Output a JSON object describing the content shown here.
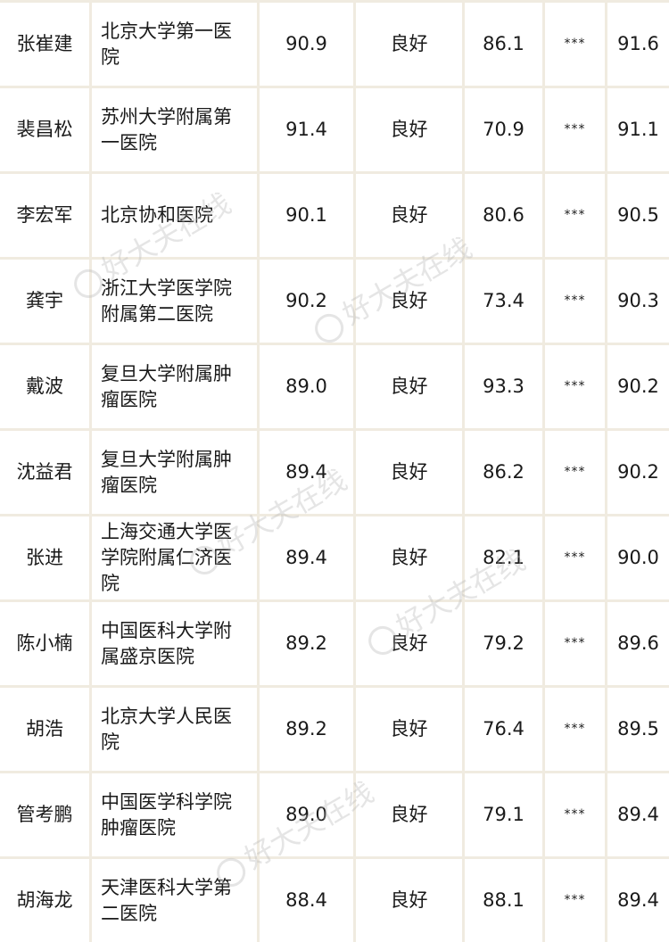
{
  "watermark": "好大夫在线",
  "rows": [
    {
      "name": "张崔建",
      "hospital": "北京大学第一医院",
      "s1": "90.9",
      "level": "良好",
      "s2": "86.1",
      "s3": "***",
      "total": "91.6"
    },
    {
      "name": "裴昌松",
      "hospital": "苏州大学附属第一医院",
      "s1": "91.4",
      "level": "良好",
      "s2": "70.9",
      "s3": "***",
      "total": "91.1"
    },
    {
      "name": "李宏军",
      "hospital": "北京协和医院",
      "s1": "90.1",
      "level": "良好",
      "s2": "80.6",
      "s3": "***",
      "total": "90.5"
    },
    {
      "name": "龚宇",
      "hospital": "浙江大学医学院附属第二医院",
      "s1": "90.2",
      "level": "良好",
      "s2": "73.4",
      "s3": "***",
      "total": "90.3"
    },
    {
      "name": "戴波",
      "hospital": "复旦大学附属肿瘤医院",
      "s1": "89.0",
      "level": "良好",
      "s2": "93.3",
      "s3": "***",
      "total": "90.2"
    },
    {
      "name": "沈益君",
      "hospital": "复旦大学附属肿瘤医院",
      "s1": "89.4",
      "level": "良好",
      "s2": "86.2",
      "s3": "***",
      "total": "90.2"
    },
    {
      "name": "张进",
      "hospital": "上海交通大学医学院附属仁济医院",
      "s1": "89.4",
      "level": "良好",
      "s2": "82.1",
      "s3": "***",
      "total": "90.0"
    },
    {
      "name": "陈小楠",
      "hospital": "中国医科大学附属盛京医院",
      "s1": "89.2",
      "level": "良好",
      "s2": "79.2",
      "s3": "***",
      "total": "89.6"
    },
    {
      "name": "胡浩",
      "hospital": "北京大学人民医院",
      "s1": "89.2",
      "level": "良好",
      "s2": "76.4",
      "s3": "***",
      "total": "89.5"
    },
    {
      "name": "管考鹏",
      "hospital": "中国医学科学院肿瘤医院",
      "s1": "89.0",
      "level": "良好",
      "s2": "79.1",
      "s3": "***",
      "total": "89.4"
    },
    {
      "name": "胡海龙",
      "hospital": "天津医科大学第二医院",
      "s1": "88.4",
      "level": "良好",
      "s2": "88.1",
      "s3": "***",
      "total": "89.4"
    }
  ]
}
